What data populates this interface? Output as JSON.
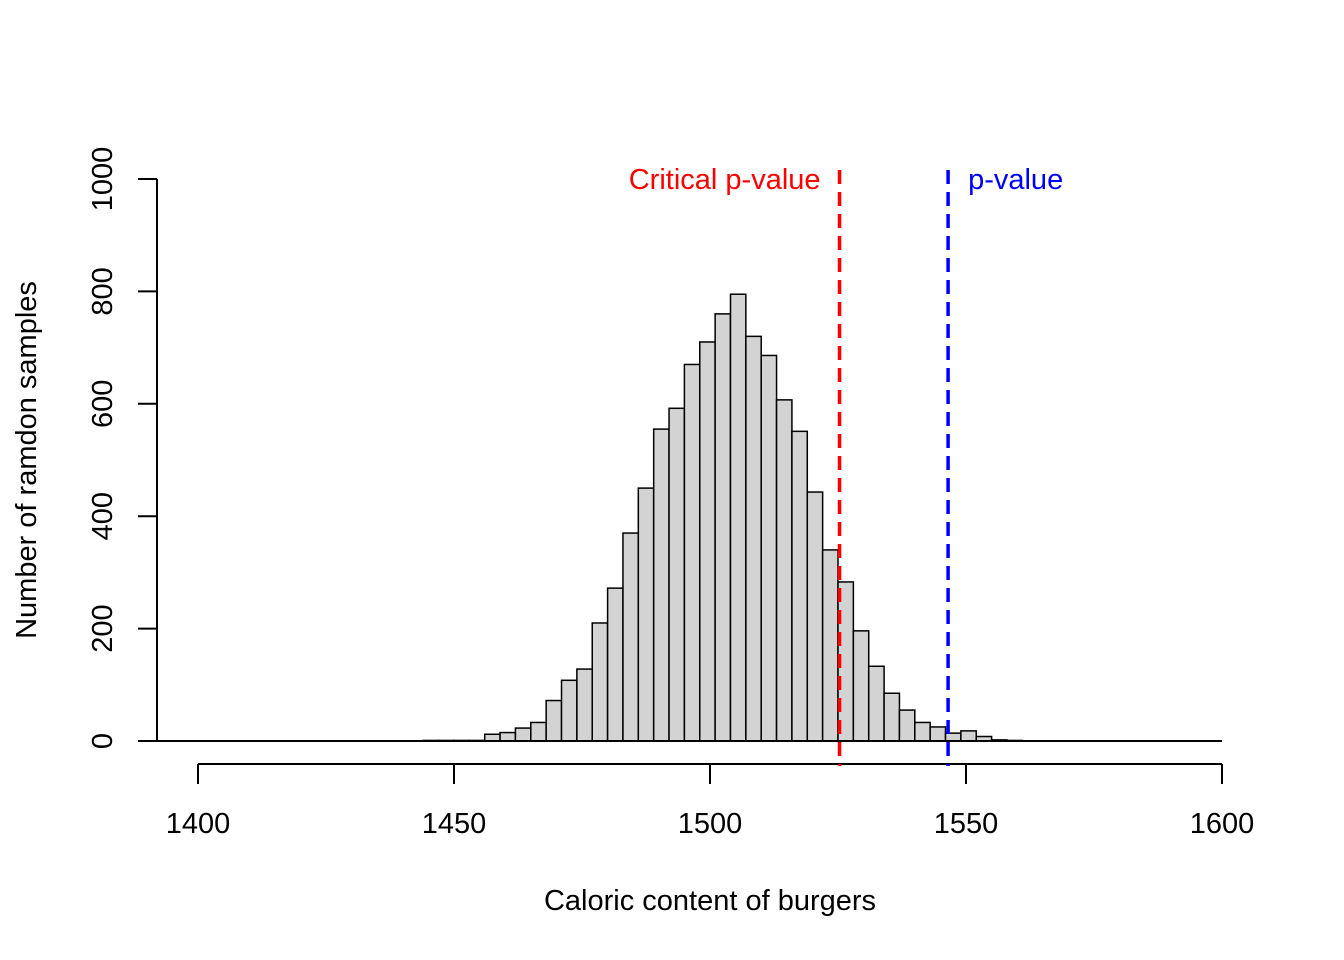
{
  "chart_data": {
    "type": "bar",
    "title": "",
    "xlabel": "Caloric content of burgers",
    "ylabel": "Number of ramdon samples",
    "xlim": [
      1400,
      1600
    ],
    "ylim": [
      0,
      1000
    ],
    "xticks": [
      "1400",
      "1450",
      "1500",
      "1550",
      "1600"
    ],
    "yticks": [
      "0",
      "200",
      "400",
      "600",
      "800",
      "1000"
    ],
    "grid": false,
    "bar_fill": "#d3d3d3",
    "bins": {
      "start": 1390,
      "width": 3,
      "counts": [
        0,
        0,
        0,
        0,
        0,
        0,
        0,
        0,
        0,
        0,
        0,
        0,
        0,
        0,
        0,
        0,
        0,
        0,
        1,
        1,
        1,
        1,
        12,
        15,
        23,
        33,
        72,
        108,
        128,
        210,
        272,
        370,
        450,
        555,
        592,
        670,
        710,
        760,
        795,
        720,
        686,
        607,
        551,
        443,
        340,
        283,
        196,
        133,
        85,
        55,
        33,
        25,
        14,
        18,
        8,
        2,
        1,
        0,
        0,
        0,
        0,
        0,
        0,
        0,
        0,
        0,
        0,
        0,
        0,
        0,
        0
      ]
    },
    "reference_lines": [
      {
        "name": "Critical p-value",
        "x": 1525.3,
        "color": "#ff0000",
        "style": "dashed",
        "label_side": "left"
      },
      {
        "name": "p-value",
        "x": 1546.5,
        "color": "#0000ff",
        "style": "dashed",
        "label_side": "right"
      }
    ]
  }
}
